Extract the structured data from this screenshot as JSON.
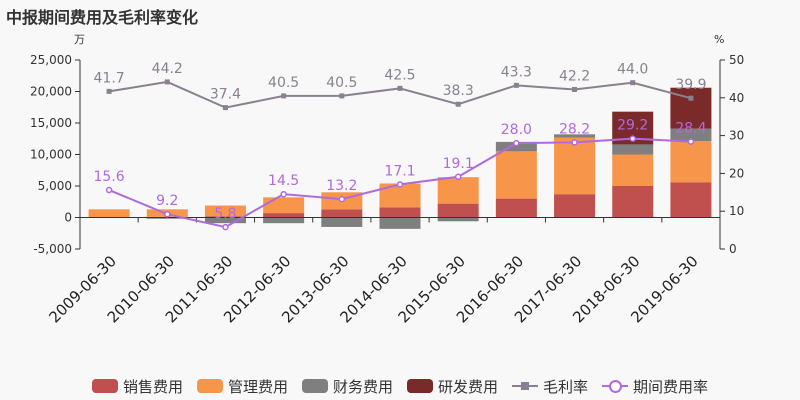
{
  "title": "中报期间费用及毛利率变化",
  "chart_data": {
    "type": "bar",
    "stacked": true,
    "categories": [
      "2009-06-30",
      "2010-06-30",
      "2011-06-30",
      "2012-06-30",
      "2013-06-30",
      "2014-06-30",
      "2015-06-30",
      "2016-06-30",
      "2017-06-30",
      "2018-06-30",
      "2019-06-30"
    ],
    "y_left": {
      "unit": "万",
      "ylim": [
        -5000,
        25000
      ],
      "ticks": [
        -5000,
        0,
        5000,
        10000,
        15000,
        20000,
        25000
      ],
      "tick_labels": [
        "-5,000",
        "0",
        "5,000",
        "10,000",
        "15,000",
        "20,000",
        "25,000"
      ]
    },
    "y_right": {
      "unit": "%",
      "ylim": [
        0,
        50
      ],
      "ticks": [
        0,
        10,
        20,
        30,
        40,
        50
      ],
      "tick_labels": [
        "0",
        "10",
        "20",
        "30",
        "40",
        "50"
      ]
    },
    "series": [
      {
        "name": "销售费用",
        "kind": "bar",
        "color": "#c0504d",
        "values": [
          0,
          100,
          200,
          700,
          1300,
          1600,
          2200,
          3000,
          3700,
          5000,
          5600
        ]
      },
      {
        "name": "管理费用",
        "kind": "bar",
        "color": "#f7964a",
        "values": [
          1300,
          1200,
          1700,
          2500,
          2700,
          3800,
          4200,
          7500,
          9000,
          5000,
          6500
        ]
      },
      {
        "name": "财务费用",
        "kind": "bar",
        "color": "#7f7f7f",
        "values": [
          0,
          -200,
          -900,
          -900,
          -1500,
          -1800,
          -600,
          1500,
          500,
          1600,
          2000
        ]
      },
      {
        "name": "研发费用",
        "kind": "bar",
        "color": "#7b2a2a",
        "values": [
          0,
          0,
          0,
          0,
          0,
          0,
          0,
          0,
          0,
          5200,
          6500
        ]
      },
      {
        "name": "毛利率",
        "kind": "line",
        "axis": "right",
        "color": "#8a8190",
        "values": [
          41.7,
          44.2,
          37.4,
          40.5,
          40.5,
          42.5,
          38.3,
          43.3,
          42.2,
          44.0,
          39.9
        ],
        "labels": [
          "41.7",
          "44.2",
          "37.4",
          "40.5",
          "40.5",
          "42.5",
          "38.3",
          "43.3",
          "42.2",
          "44.0",
          "39.9"
        ]
      },
      {
        "name": "期间费用率",
        "kind": "line",
        "axis": "right",
        "color": "#b06ae0",
        "values": [
          15.6,
          9.2,
          5.8,
          14.5,
          13.2,
          17.1,
          19.1,
          28.0,
          28.2,
          29.2,
          28.4
        ],
        "labels": [
          "15.6",
          "9.2",
          "5.8",
          "14.5",
          "13.2",
          "17.1",
          "19.1",
          "28.0",
          "28.2",
          "29.2",
          "28.4"
        ]
      }
    ],
    "grid": false,
    "legend": "bottom"
  }
}
